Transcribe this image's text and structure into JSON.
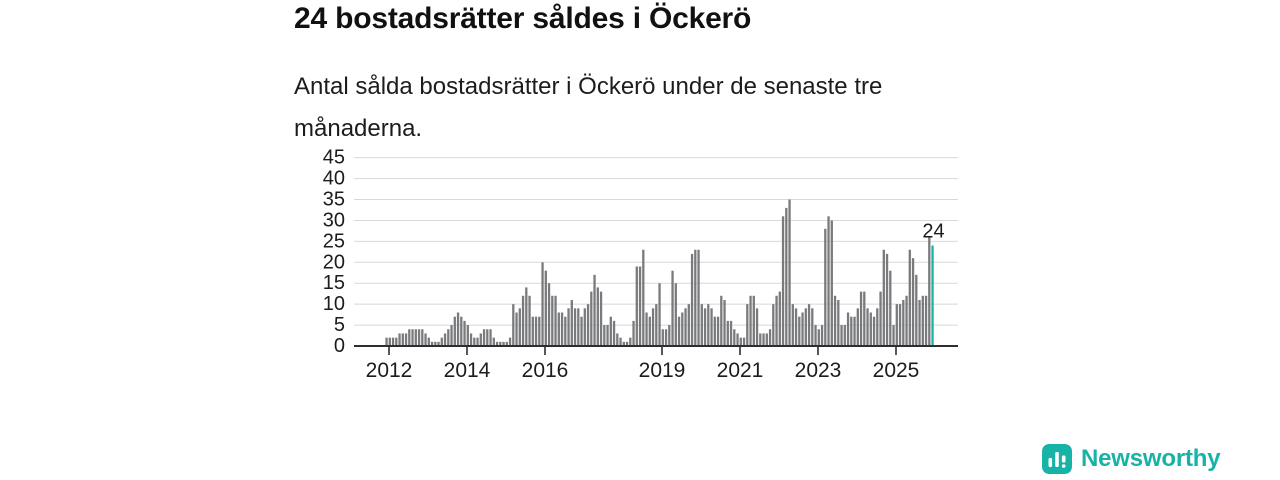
{
  "title": "24 bostadsrätter såldes i Öckerö",
  "subtitle": "Antal sålda bostadsrätter i Öckerö under de senaste tre månaderna.",
  "annotation": {
    "label": "24"
  },
  "logo": {
    "brand": "Newsworthy",
    "icon": "bar-chart-icon"
  },
  "colors": {
    "bar": "#797a7d",
    "highlight": "#18b3a7",
    "grid": "#d8d8d8",
    "axis": "#2e2e2e",
    "text": "#1c1c1c",
    "brand": "#18b3a7"
  },
  "chart_data": {
    "type": "bar",
    "title": "24 bostadsrätter såldes i Öckerö",
    "ylabel": "",
    "xlabel": "",
    "ylim": [
      0,
      45
    ],
    "grid": true,
    "frequency": "monthly",
    "start_month": "2011-12",
    "y_ticks": [
      0,
      5,
      10,
      15,
      20,
      25,
      30,
      35,
      40,
      45
    ],
    "x_tick_years": [
      2012,
      2014,
      2016,
      2019,
      2021,
      2023,
      2025
    ],
    "highlight_last": true,
    "last_value_label": "24",
    "values": [
      2,
      2,
      2,
      2,
      3,
      3,
      3,
      4,
      4,
      4,
      4,
      4,
      3,
      2,
      1,
      1,
      1,
      2,
      3,
      4,
      5,
      7,
      8,
      7,
      6,
      5,
      3,
      2,
      2,
      3,
      4,
      4,
      4,
      2,
      1,
      1,
      1,
      1,
      2,
      10,
      8,
      9,
      12,
      14,
      12,
      7,
      7,
      7,
      20,
      18,
      15,
      12,
      12,
      8,
      8,
      7,
      9,
      11,
      9,
      9,
      7,
      9,
      10,
      13,
      17,
      14,
      13,
      5,
      5,
      7,
      6,
      3,
      2,
      1,
      1,
      2,
      6,
      19,
      19,
      23,
      8,
      7,
      9,
      10,
      15,
      4,
      4,
      5,
      18,
      15,
      7,
      8,
      9,
      10,
      22,
      23,
      23,
      10,
      9,
      10,
      9,
      7,
      7,
      12,
      11,
      6,
      6,
      4,
      3,
      2,
      2,
      10,
      12,
      12,
      9,
      3,
      3,
      3,
      4,
      10,
      12,
      13,
      31,
      33,
      35,
      10,
      9,
      7,
      8,
      9,
      10,
      9,
      5,
      4,
      5,
      28,
      31,
      30,
      12,
      11,
      5,
      5,
      8,
      7,
      7,
      9,
      13,
      13,
      9,
      8,
      7,
      9,
      13,
      23,
      22,
      18,
      5,
      10,
      10,
      11,
      12,
      23,
      21,
      17,
      11,
      12,
      12,
      26,
      24
    ]
  }
}
